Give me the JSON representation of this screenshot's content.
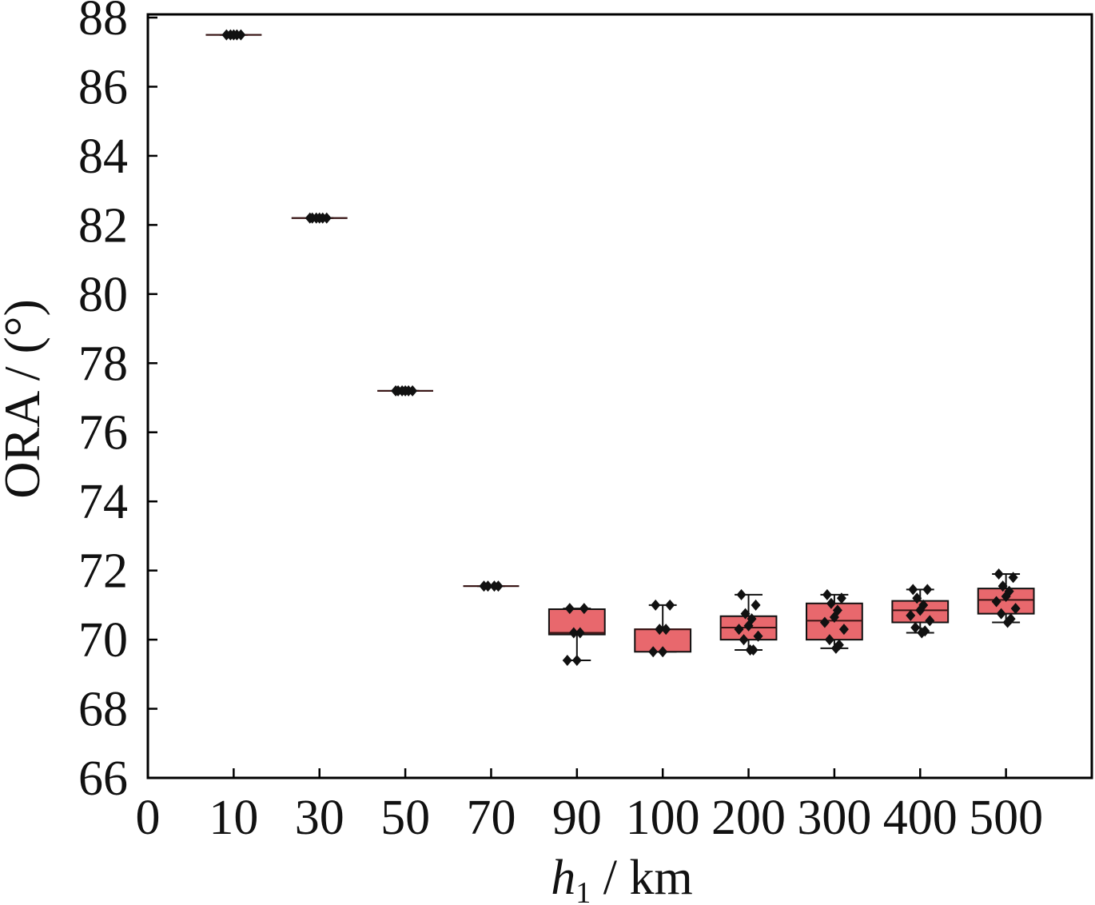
{
  "chart_data": {
    "type": "box",
    "xlabel": "h1 / km",
    "ylabel": "ORA / (°)",
    "ylim": [
      66,
      88
    ],
    "yticks": [
      66,
      68,
      70,
      72,
      74,
      76,
      78,
      80,
      82,
      84,
      86,
      88
    ],
    "xtick_labels": [
      "0",
      "10",
      "30",
      "50",
      "70",
      "90",
      "100",
      "200",
      "300",
      "400",
      "500"
    ],
    "categories": [
      "10",
      "30",
      "50",
      "70",
      "90",
      "100",
      "200",
      "300",
      "400",
      "500"
    ],
    "grid": false,
    "colors": {
      "box_fill": "#e8686d",
      "points": "#111111",
      "axes": "#000000"
    },
    "boxes": [
      {
        "whisker_low": 87.5,
        "q1": 87.5,
        "median": 87.5,
        "q3": 87.5,
        "whisker_high": 87.5,
        "points": [
          87.5,
          87.5,
          87.5,
          87.5,
          87.5
        ]
      },
      {
        "whisker_low": 82.2,
        "q1": 82.2,
        "median": 82.2,
        "q3": 82.2,
        "whisker_high": 82.2,
        "points": [
          82.2,
          82.2,
          82.2,
          82.2,
          82.2,
          82.2
        ]
      },
      {
        "whisker_low": 77.2,
        "q1": 77.2,
        "median": 77.2,
        "q3": 77.2,
        "whisker_high": 77.2,
        "points": [
          77.2,
          77.2,
          77.2,
          77.2,
          77.2,
          77.2
        ]
      },
      {
        "whisker_low": 71.55,
        "q1": 71.55,
        "median": 71.55,
        "q3": 71.55,
        "whisker_high": 71.55,
        "points": [
          71.55,
          71.55,
          71.55,
          71.55
        ]
      },
      {
        "whisker_low": 69.4,
        "q1": 70.15,
        "median": 70.2,
        "q3": 70.88,
        "whisker_high": 70.9,
        "points": [
          70.9,
          70.9,
          70.2,
          70.2,
          69.4,
          69.4
        ]
      },
      {
        "whisker_low": 69.65,
        "q1": 69.65,
        "median": 70.3,
        "q3": 70.3,
        "whisker_high": 71.0,
        "points": [
          71.0,
          71.0,
          70.3,
          70.3,
          69.65,
          69.65
        ]
      },
      {
        "whisker_low": 69.7,
        "q1": 70.0,
        "median": 70.35,
        "q3": 70.68,
        "whisker_high": 71.3,
        "points": [
          71.3,
          71.0,
          70.75,
          70.6,
          70.4,
          70.3,
          70.1,
          70.0,
          69.7,
          69.7
        ]
      },
      {
        "whisker_low": 69.75,
        "q1": 70.0,
        "median": 70.55,
        "q3": 71.05,
        "whisker_high": 71.3,
        "points": [
          71.3,
          71.2,
          71.05,
          70.85,
          70.65,
          70.5,
          70.3,
          70.0,
          69.85,
          69.75
        ]
      },
      {
        "whisker_low": 70.2,
        "q1": 70.5,
        "median": 70.85,
        "q3": 71.12,
        "whisker_high": 71.45,
        "points": [
          71.45,
          71.45,
          71.2,
          71.0,
          70.85,
          70.7,
          70.55,
          70.35,
          70.25,
          70.2
        ]
      },
      {
        "whisker_low": 70.5,
        "q1": 70.75,
        "median": 71.15,
        "q3": 71.48,
        "whisker_high": 71.9,
        "points": [
          71.9,
          71.8,
          71.55,
          71.4,
          71.25,
          71.1,
          70.9,
          70.75,
          70.6,
          70.5
        ]
      }
    ]
  }
}
